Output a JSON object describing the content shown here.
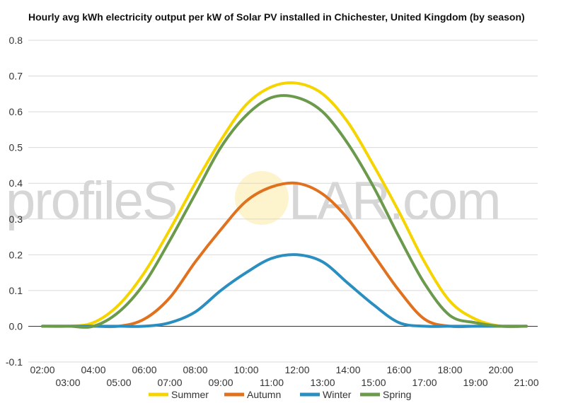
{
  "chart_data": {
    "type": "line",
    "title": "Hourly avg kWh electricity output per kW of Solar PV installed in Chichester, United Kingdom (by season)",
    "xlabel": "",
    "ylabel": "",
    "ylim": [
      -0.1,
      0.8
    ],
    "y_ticks": [
      "0.8",
      "0.7",
      "0.6",
      "0.5",
      "0.4",
      "0.3",
      "0.2",
      "0.1",
      "0.0",
      "-0.1"
    ],
    "y_tick_values": [
      0.8,
      0.7,
      0.6,
      0.5,
      0.4,
      0.3,
      0.2,
      0.1,
      0.0,
      -0.1
    ],
    "x_hours": [
      2,
      3,
      4,
      5,
      6,
      7,
      8,
      9,
      10,
      11,
      12,
      13,
      14,
      15,
      16,
      17,
      18,
      19,
      20,
      21
    ],
    "x_tick_labels": [
      "02:00",
      "03:00",
      "04:00",
      "05:00",
      "06:00",
      "07:00",
      "08:00",
      "09:00",
      "10:00",
      "11:00",
      "12:00",
      "13:00",
      "14:00",
      "15:00",
      "16:00",
      "17:00",
      "18:00",
      "19:00",
      "20:00",
      "21:00"
    ],
    "grid": true,
    "legend_position": "bottom",
    "series": [
      {
        "name": "Summer",
        "color": "#f5d400",
        "x": [
          2,
          3,
          4,
          5,
          6,
          7,
          8,
          9,
          10,
          11,
          12,
          13,
          14,
          15,
          16,
          17,
          18,
          19,
          20,
          21
        ],
        "values": [
          0.0,
          0.0,
          0.01,
          0.06,
          0.15,
          0.27,
          0.4,
          0.52,
          0.62,
          0.67,
          0.68,
          0.65,
          0.57,
          0.45,
          0.32,
          0.18,
          0.07,
          0.02,
          0.0,
          0.0
        ]
      },
      {
        "name": "Autumn",
        "color": "#e0711e",
        "x": [
          2,
          3,
          4,
          5,
          6,
          7,
          8,
          9,
          10,
          11,
          12,
          13,
          14,
          15,
          16,
          17,
          18,
          19,
          20,
          21
        ],
        "values": [
          0.0,
          0.0,
          0.0,
          0.0,
          0.02,
          0.08,
          0.18,
          0.27,
          0.35,
          0.39,
          0.4,
          0.37,
          0.3,
          0.2,
          0.1,
          0.02,
          0.0,
          0.0,
          0.0,
          0.0
        ]
      },
      {
        "name": "Winter",
        "color": "#2a8fc0",
        "x": [
          2,
          3,
          4,
          5,
          6,
          7,
          8,
          9,
          10,
          11,
          12,
          13,
          14,
          15,
          16,
          17,
          18,
          19,
          20,
          21
        ],
        "values": [
          0.0,
          0.0,
          0.0,
          0.0,
          0.0,
          0.01,
          0.04,
          0.1,
          0.15,
          0.19,
          0.2,
          0.18,
          0.12,
          0.06,
          0.01,
          0.0,
          0.0,
          0.0,
          0.0,
          0.0
        ]
      },
      {
        "name": "Spring",
        "color": "#6b9a4c",
        "x": [
          2,
          3,
          4,
          5,
          6,
          7,
          8,
          9,
          10,
          11,
          12,
          13,
          14,
          15,
          16,
          17,
          18,
          19,
          20,
          21
        ],
        "values": [
          0.0,
          0.0,
          0.0,
          0.04,
          0.12,
          0.24,
          0.37,
          0.5,
          0.59,
          0.64,
          0.64,
          0.6,
          0.51,
          0.39,
          0.25,
          0.12,
          0.03,
          0.01,
          0.0,
          0.0
        ]
      }
    ]
  },
  "watermark": {
    "text_left": "profileS",
    "text_right": "LAR.com",
    "sun_color": "#fdf3cc"
  }
}
